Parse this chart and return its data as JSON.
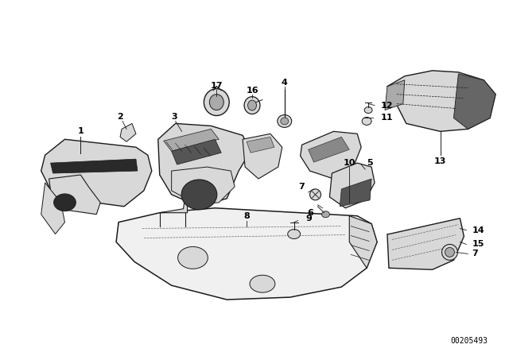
{
  "bg_color": "#ffffff",
  "diagram_id": "00205493",
  "fig_width": 6.4,
  "fig_height": 4.48,
  "dpi": 100,
  "footnote_text": "00205493",
  "footnote_fontsize": 7,
  "label_fontsize": 8,
  "line_color": "#1a1a1a",
  "text_color": "#000000",
  "face_light": "#f0f0f0",
  "face_mid": "#d8d8d8",
  "face_dark": "#aaaaaa",
  "face_black": "#2a2a2a",
  "stroke": "#1a1a1a"
}
